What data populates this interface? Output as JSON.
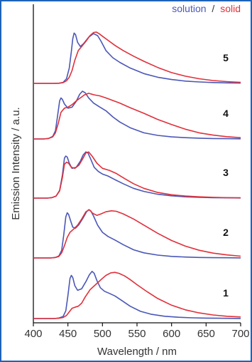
{
  "chart_data": {
    "type": "line",
    "title": "",
    "xlabel": "Wavelength / nm",
    "ylabel": "Emission Intensity / a.u.",
    "xlim": [
      400,
      700
    ],
    "xticks": [
      400,
      450,
      500,
      550,
      600,
      650,
      700
    ],
    "grid": false,
    "legend": {
      "position": "top-right",
      "entries": [
        {
          "name": "solution",
          "color": "#4a57b8"
        },
        {
          "name": "solid",
          "color": "#e0303a"
        }
      ],
      "separator": "/"
    },
    "panels": [
      {
        "label": "5",
        "series": [
          {
            "name": "solution",
            "color": "#4a57b8",
            "x": [
              430,
              437,
              443,
              448,
              452,
              455,
              457,
              459,
              461,
              464,
              468,
              473,
              480,
              487,
              493,
              498,
              505,
              515,
              525,
              540,
              560,
              580,
              600,
              620,
              640,
              660,
              680,
              700
            ],
            "y": [
              0,
              0.003,
              0.02,
              0.09,
              0.3,
              0.62,
              0.87,
              0.98,
              0.95,
              0.8,
              0.72,
              0.78,
              0.9,
              0.97,
              0.93,
              0.82,
              0.64,
              0.5,
              0.41,
              0.3,
              0.19,
              0.12,
              0.075,
              0.045,
              0.028,
              0.017,
              0.01,
              0.006
            ]
          },
          {
            "name": "solid",
            "color": "#e0303a",
            "x": [
              430,
              437,
              443,
              448,
              452,
              456,
              460,
              465,
              470,
              476,
              482,
              487,
              491,
              495,
              500,
              508,
              518,
              530,
              545,
              560,
              580,
              600,
              620,
              640,
              660,
              680,
              700
            ],
            "y": [
              0,
              0.003,
              0.015,
              0.05,
              0.12,
              0.25,
              0.45,
              0.64,
              0.72,
              0.82,
              0.93,
              0.99,
              1.0,
              0.97,
              0.92,
              0.84,
              0.74,
              0.64,
              0.53,
              0.43,
              0.31,
              0.21,
              0.14,
              0.09,
              0.055,
              0.035,
              0.02
            ]
          }
        ]
      },
      {
        "label": "4",
        "series": [
          {
            "name": "solution",
            "color": "#4a57b8",
            "x": [
              415,
              422,
              428,
              432,
              435,
              438,
              440,
              442,
              445,
              450,
              456,
              462,
              467,
              471,
              475,
              480,
              487,
              495,
              505,
              515,
              525,
              540,
              560,
              580,
              600,
              620,
              640,
              660,
              680,
              700
            ],
            "y": [
              0,
              0.01,
              0.05,
              0.16,
              0.45,
              0.74,
              0.8,
              0.77,
              0.68,
              0.6,
              0.62,
              0.73,
              0.87,
              0.93,
              0.9,
              0.8,
              0.7,
              0.63,
              0.55,
              0.43,
              0.33,
              0.22,
              0.12,
              0.07,
              0.04,
              0.025,
              0.015,
              0.008,
              0.005,
              0.003
            ]
          },
          {
            "name": "solid",
            "color": "#e0303a",
            "x": [
              415,
              422,
              428,
              432,
              436,
              440,
              445,
              450,
              456,
              462,
              468,
              474,
              480,
              488,
              496,
              505,
              515,
              525,
              540,
              560,
              580,
              600,
              620,
              640,
              660,
              680,
              700
            ],
            "y": [
              0,
              0.01,
              0.04,
              0.12,
              0.3,
              0.52,
              0.6,
              0.62,
              0.67,
              0.74,
              0.8,
              0.86,
              0.89,
              0.86,
              0.84,
              0.8,
              0.75,
              0.7,
              0.61,
              0.5,
              0.38,
              0.28,
              0.19,
              0.12,
              0.075,
              0.045,
              0.025
            ]
          }
        ]
      },
      {
        "label": "3",
        "series": [
          {
            "name": "solution",
            "color": "#4a57b8",
            "x": [
              420,
              427,
              433,
              438,
              442,
              445,
              447,
              449,
              452,
              456,
              462,
              468,
              472,
              476,
              479,
              483,
              488,
              494,
              500,
              508,
              518,
              530,
              545,
              560,
              580,
              600,
              620,
              640,
              660,
              680,
              700
            ],
            "y": [
              0,
              0.01,
              0.04,
              0.15,
              0.45,
              0.78,
              0.82,
              0.8,
              0.68,
              0.58,
              0.6,
              0.72,
              0.84,
              0.9,
              0.88,
              0.76,
              0.6,
              0.52,
              0.47,
              0.43,
              0.36,
              0.28,
              0.19,
              0.13,
              0.075,
              0.045,
              0.025,
              0.015,
              0.009,
              0.005,
              0.003
            ]
          },
          {
            "name": "solid",
            "color": "#e0303a",
            "x": [
              420,
              427,
              433,
              438,
              442,
              445,
              448,
              451,
              455,
              460,
              466,
              472,
              476,
              480,
              485,
              492,
              500,
              510,
              520,
              532,
              545,
              560,
              580,
              600,
              620,
              640,
              660,
              680,
              700
            ],
            "y": [
              0,
              0.01,
              0.04,
              0.14,
              0.4,
              0.66,
              0.7,
              0.68,
              0.6,
              0.58,
              0.64,
              0.78,
              0.88,
              0.9,
              0.82,
              0.68,
              0.58,
              0.54,
              0.48,
              0.38,
              0.28,
              0.19,
              0.11,
              0.065,
              0.04,
              0.025,
              0.015,
              0.009,
              0.005
            ]
          }
        ]
      },
      {
        "label": "2",
        "series": [
          {
            "name": "solution",
            "color": "#4a57b8",
            "x": [
              425,
              432,
              437,
              441,
              444,
              447,
              449,
              451,
              454,
              457,
              461,
              466,
              472,
              477,
              480,
              483,
              487,
              493,
              500,
              508,
              518,
              530,
              545,
              560,
              580,
              600,
              620,
              640,
              660,
              680,
              700
            ],
            "y": [
              0,
              0.01,
              0.04,
              0.15,
              0.45,
              0.8,
              0.88,
              0.85,
              0.72,
              0.6,
              0.58,
              0.65,
              0.78,
              0.9,
              0.94,
              0.92,
              0.82,
              0.64,
              0.5,
              0.42,
              0.35,
              0.26,
              0.16,
              0.1,
              0.055,
              0.03,
              0.018,
              0.01,
              0.006,
              0.004,
              0.002
            ]
          },
          {
            "name": "solid",
            "color": "#e0303a",
            "x": [
              425,
              432,
              437,
              441,
              445,
              449,
              453,
              458,
              464,
              470,
              476,
              481,
              486,
              492,
              498,
              505,
              513,
              520,
              530,
              545,
              560,
              580,
              600,
              620,
              640,
              660,
              680,
              700
            ],
            "y": [
              0,
              0.01,
              0.03,
              0.1,
              0.24,
              0.4,
              0.5,
              0.56,
              0.64,
              0.76,
              0.9,
              0.94,
              0.87,
              0.83,
              0.86,
              0.9,
              0.92,
              0.91,
              0.86,
              0.76,
              0.64,
              0.48,
              0.34,
              0.23,
              0.15,
              0.095,
              0.06,
              0.035
            ]
          }
        ]
      },
      {
        "label": "1",
        "series": [
          {
            "name": "solution",
            "color": "#4a57b8",
            "x": [
              430,
              437,
              443,
              447,
              450,
              453,
              455,
              457,
              460,
              464,
              470,
              476,
              481,
              485,
              488,
              492,
              497,
              503,
              510,
              518,
              527,
              540,
              555,
              570,
              590,
              610,
              630,
              650,
              670,
              700
            ],
            "y": [
              0,
              0.01,
              0.04,
              0.15,
              0.45,
              0.78,
              0.84,
              0.8,
              0.64,
              0.55,
              0.58,
              0.72,
              0.85,
              0.92,
              0.88,
              0.74,
              0.6,
              0.53,
              0.49,
              0.44,
              0.36,
              0.24,
              0.14,
              0.085,
              0.045,
              0.025,
              0.014,
              0.008,
              0.005,
              0.002
            ]
          },
          {
            "name": "solid",
            "color": "#e0303a",
            "x": [
              430,
              437,
              443,
              448,
              452,
              456,
              460,
              465,
              470,
              475,
              482,
              490,
              498,
              505,
              512,
              518,
              524,
              532,
              540,
              550,
              565,
              580,
              600,
              620,
              640,
              660,
              680,
              700
            ],
            "y": [
              0,
              0.005,
              0.02,
              0.06,
              0.13,
              0.2,
              0.22,
              0.24,
              0.3,
              0.42,
              0.56,
              0.66,
              0.76,
              0.84,
              0.89,
              0.9,
              0.88,
              0.83,
              0.76,
              0.66,
              0.52,
              0.39,
              0.26,
              0.17,
              0.11,
              0.07,
              0.045,
              0.03
            ]
          }
        ]
      }
    ]
  }
}
